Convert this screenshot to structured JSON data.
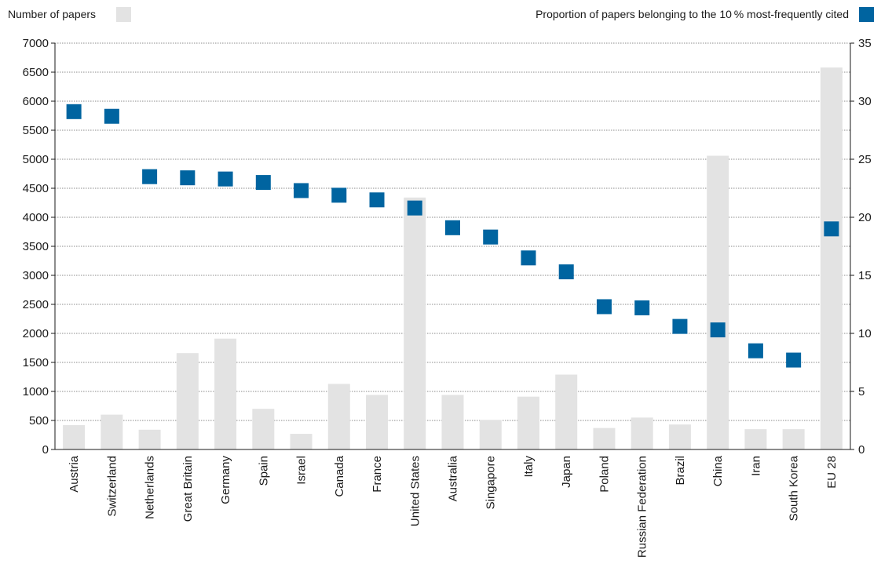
{
  "legend": {
    "bars_label": "Number of papers",
    "points_label": "Proportion of papers belonging to the 10 % most-frequently cited"
  },
  "colors": {
    "bars": "#e3e3e3",
    "points": "#0064a0",
    "grid": "#666666",
    "axis": "#1a1a1a"
  },
  "chart_data": {
    "type": "bar",
    "categories": [
      "Austria",
      "Switzerland",
      "Netherlands",
      "Great Britain",
      "Germany",
      "Spain",
      "Israel",
      "Canada",
      "France",
      "United States",
      "Australia",
      "Singapore",
      "Italy",
      "Japan",
      "Poland",
      "Russian Federation",
      "Brazil",
      "China",
      "Iran",
      "South Korea",
      "EU 28"
    ],
    "series": [
      {
        "name": "Number of papers",
        "type": "bar",
        "axis": "left",
        "values": [
          420,
          600,
          340,
          1660,
          1910,
          700,
          270,
          1130,
          940,
          4340,
          940,
          510,
          910,
          1290,
          370,
          550,
          430,
          5060,
          350,
          350,
          6580
        ]
      },
      {
        "name": "Proportion of papers belonging to the 10 % most-frequently cited",
        "type": "scatter",
        "axis": "right",
        "values": [
          29.1,
          28.7,
          23.5,
          23.4,
          23.3,
          23.0,
          22.3,
          21.9,
          21.5,
          20.8,
          19.1,
          18.3,
          16.5,
          15.3,
          12.3,
          12.2,
          10.6,
          10.3,
          8.5,
          7.7,
          19.0
        ]
      }
    ],
    "ylim": [
      0,
      7000
    ],
    "y2lim": [
      0,
      35
    ],
    "y_ticks": [
      "0",
      "500",
      "1000",
      "1500",
      "2000",
      "2500",
      "3000",
      "3500",
      "4000",
      "4500",
      "5000",
      "5500",
      "6000",
      "6500",
      "7000"
    ],
    "y2_ticks": [
      "0",
      "5",
      "10",
      "15",
      "20",
      "25",
      "30",
      "35"
    ],
    "grid": true,
    "legend_position": "top"
  }
}
